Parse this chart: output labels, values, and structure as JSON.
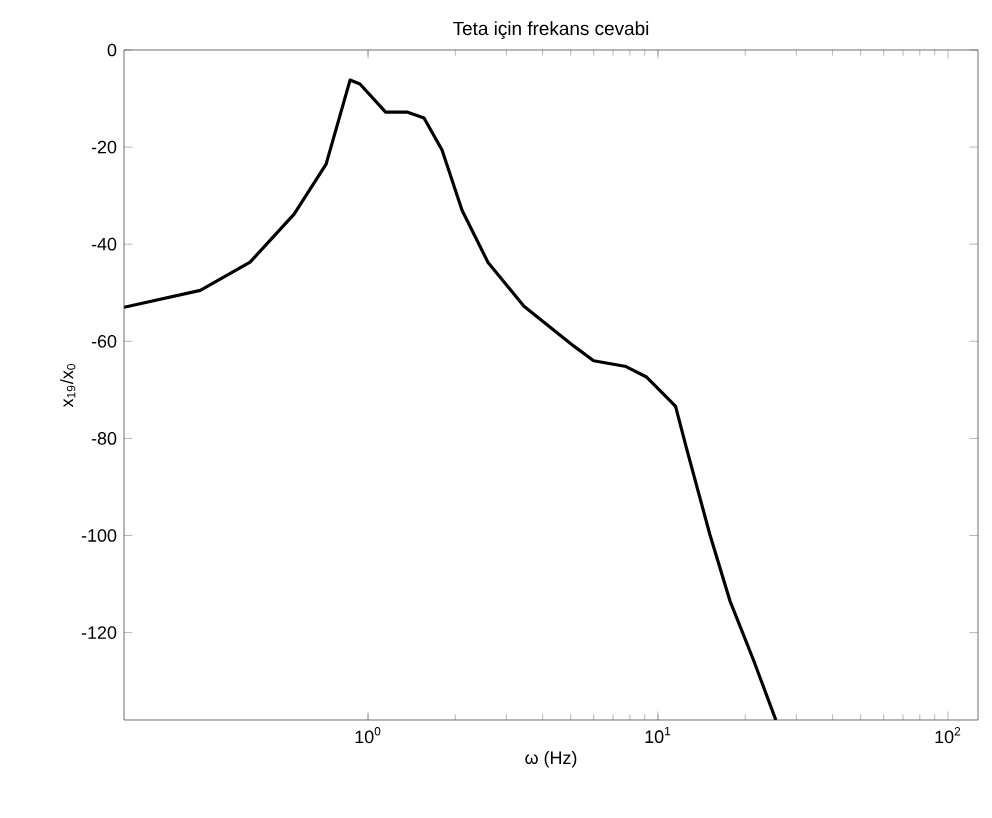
{
  "chart_data": {
    "type": "line",
    "title": "Teta için frekans cevabi",
    "xlabel": "ω (Hz)",
    "ylabel": "x$_{19}$/x$_{0}$",
    "log": "x",
    "marker": "none",
    "line_style": "solid",
    "xlim": [
      0.144,
      127
    ],
    "ylim": [
      -138,
      0
    ],
    "xticks": [
      {
        "value": 1,
        "label": "10$^{0}$"
      },
      {
        "value": 10,
        "label": "10$^{1}$"
      },
      {
        "value": 100,
        "label": "10$^{2}$"
      }
    ],
    "yticks": [
      -120,
      -100,
      -80,
      -60,
      -40,
      -20,
      0
    ],
    "series": [
      {
        "color": "#000000",
        "x": [
          0.144,
          0.264,
          0.392,
          0.556,
          0.717,
          0.867,
          0.938,
          1.15,
          1.37,
          1.56,
          1.8,
          2.11,
          2.59,
          3.45,
          5.13,
          6.0,
          7.76,
          9.1,
          11.0,
          11.5,
          12.5,
          15.1,
          17.7,
          21.4,
          25.5
        ],
        "values": [
          -53,
          -49.5,
          -43.7,
          -33.8,
          -23.5,
          -6.2,
          -7,
          -12.8,
          -12.8,
          -14,
          -20.6,
          -33,
          -43.7,
          -52.8,
          -61,
          -64,
          -65.2,
          -67.3,
          -72.2,
          -73.4,
          -81.7,
          -99.8,
          -113.4,
          -125.8,
          -138
        ]
      }
    ]
  }
}
